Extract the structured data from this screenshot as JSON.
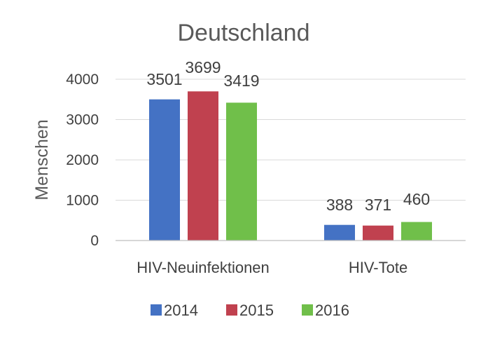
{
  "chart_data": {
    "type": "bar",
    "title": "Deutschland",
    "ylabel": "Menschen",
    "xlabel": "",
    "categories": [
      "HIV-Neuinfektionen",
      "HIV-Tote"
    ],
    "series": [
      {
        "name": "2014",
        "color": "#4472c4",
        "values": [
          3501,
          388
        ]
      },
      {
        "name": "2015",
        "color": "#c0414f",
        "values": [
          3699,
          371
        ]
      },
      {
        "name": "2016",
        "color": "#70bf4a",
        "values": [
          3419,
          460
        ]
      }
    ],
    "ylim": [
      0,
      4000
    ],
    "yticks": [
      0,
      1000,
      2000,
      3000,
      4000
    ],
    "grid": true,
    "legend": "bottom"
  }
}
